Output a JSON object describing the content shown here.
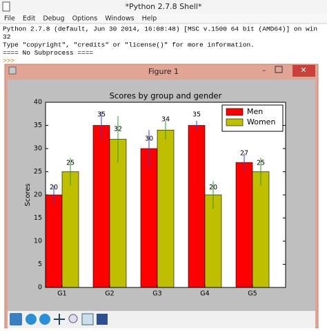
{
  "shell": {
    "title": "*Python 2.7.8 Shell*",
    "menu": [
      "File",
      "Edit",
      "Debug",
      "Options",
      "Windows",
      "Help"
    ],
    "lines": [
      "Python 2.7.8 (default, Jun 30 2014, 16:08:48) [MSC v.1500 64 bit (AMD64)] on win",
      "32",
      "Type \"copyright\", \"credits\" or \"license()\" for more information.",
      "==== No Subprocess ===="
    ],
    "prompt": ">>>"
  },
  "figure_window": {
    "title": "Figure 1"
  },
  "chart_data": {
    "type": "bar",
    "title": "Scores by group and gender",
    "ylabel": "Scores",
    "categories": [
      "G1",
      "G2",
      "G3",
      "G4",
      "G5"
    ],
    "series": [
      {
        "name": "Men",
        "color": "#ff0000",
        "error_color": "#3a3ad0",
        "values": [
          20,
          35,
          30,
          35,
          27
        ],
        "errors": [
          2,
          3,
          4,
          1,
          2
        ]
      },
      {
        "name": "Women",
        "color": "#bfbf00",
        "error_color": "#2e9a2e",
        "values": [
          25,
          32,
          34,
          20,
          25
        ],
        "errors": [
          3,
          5,
          2,
          3,
          3
        ]
      }
    ],
    "ylim": [
      0,
      40
    ],
    "yticks": [
      0,
      5,
      10,
      15,
      20,
      25,
      30,
      35,
      40
    ],
    "legend": "upper right"
  }
}
